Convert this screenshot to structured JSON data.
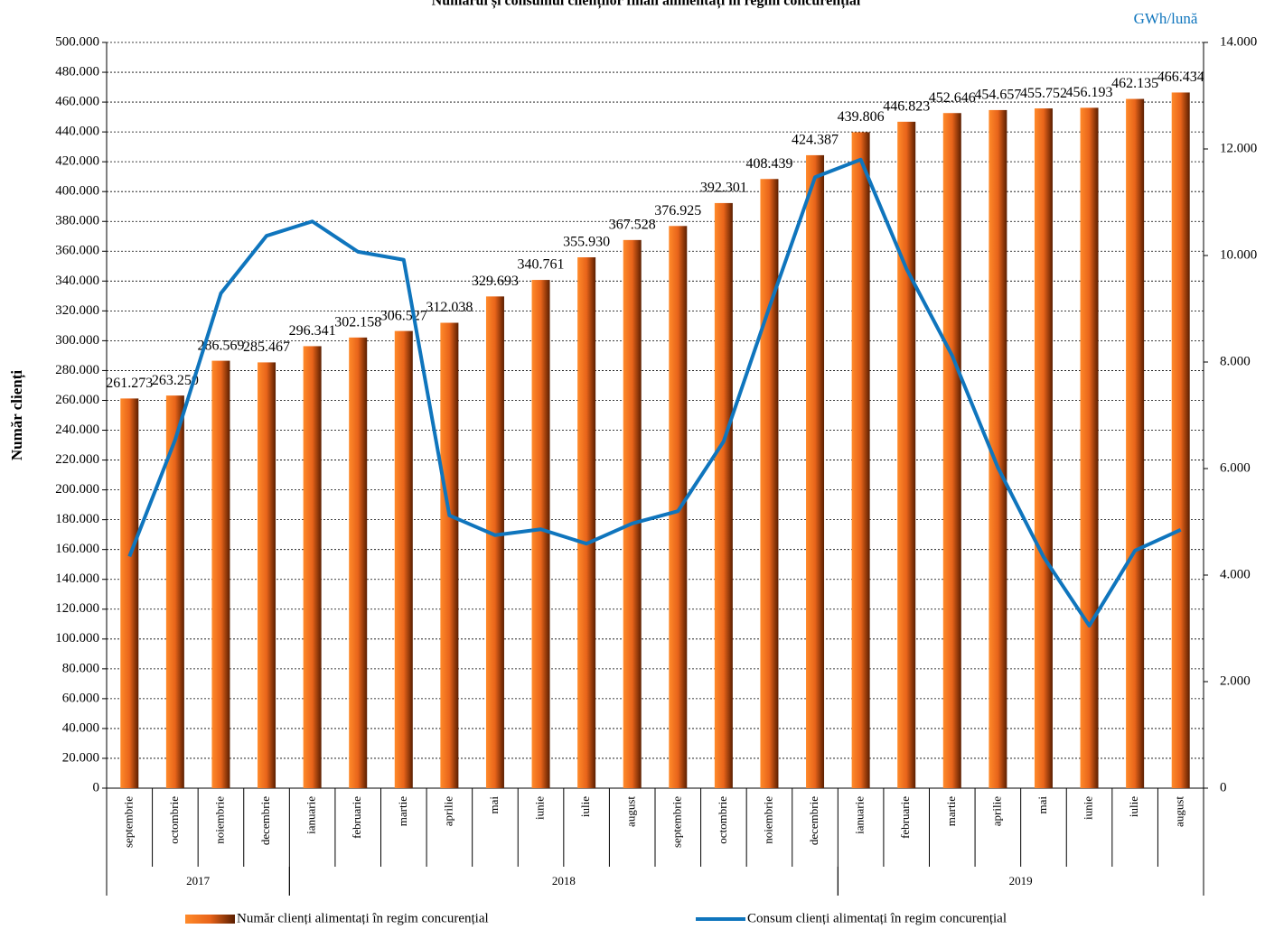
{
  "chart_data": {
    "type": "bar_line",
    "title": "Numărul și consumul clienților finali alimentați în regim concurențial",
    "y_label": "Număr clienți",
    "y2_label": "GWh/lună",
    "categories": [
      "septembrie",
      "octombrie",
      "noiembrie",
      "decembrie",
      "ianuarie",
      "februarie",
      "martie",
      "aprilie",
      "mai",
      "iunie",
      "iulie",
      "august",
      "septembrie",
      "octombrie",
      "noiembrie",
      "decembrie",
      "ianuarie",
      "februarie",
      "martie",
      "aprilie",
      "mai",
      "iunie",
      "iulie",
      "august"
    ],
    "groups": [
      {
        "name": "2017",
        "count": 4
      },
      {
        "name": "2018",
        "count": 12
      },
      {
        "name": "2019",
        "count": 8
      }
    ],
    "series": [
      {
        "name": "Număr clienți alimentați în regim concurențial",
        "type": "bar",
        "color": "#e8641a",
        "values": [
          261273,
          263250,
          286569,
          285467,
          296341,
          302158,
          306527,
          312038,
          329693,
          340761,
          355930,
          367528,
          376925,
          392301,
          408439,
          424387,
          439806,
          446823,
          452646,
          454657,
          455752,
          456193,
          462135,
          466434
        ],
        "value_labels": [
          "261.273",
          "263.250",
          "286.569",
          "285.467",
          "296.341",
          "302.158",
          "306.527",
          "312.038",
          "329.693",
          "340.761",
          "355.930",
          "367.528",
          "376.925",
          "392.301",
          "408.439",
          "424.387",
          "439.806",
          "446.823",
          "452.646",
          "454.657",
          "455.752",
          "456.193",
          "462.135",
          "466.434"
        ]
      },
      {
        "name": "Consum clienți alimentați în regim concurențial",
        "type": "line",
        "axis": "y2",
        "color": "#0f75bd",
        "values": [
          4350,
          6540,
          9290,
          10370,
          10640,
          10070,
          9920,
          5120,
          4750,
          4860,
          4590,
          4970,
          5200,
          6510,
          9030,
          11470,
          11800,
          9750,
          8120,
          6020,
          4340,
          3050,
          4460,
          4850
        ]
      }
    ],
    "ylim": [
      0,
      500000
    ],
    "yticks": [
      0,
      {
        "value": 20000,
        "label": "20.000"
      },
      {
        "value": 40000,
        "label": "40.000"
      },
      {
        "value": 60000,
        "label": "60.000"
      },
      {
        "value": 80000,
        "label": "80.000"
      },
      {
        "value": 100000,
        "label": "100.000"
      },
      {
        "value": 120000,
        "label": "120.000"
      },
      {
        "value": 140000,
        "label": "140.000"
      },
      {
        "value": 160000,
        "label": "160.000"
      },
      {
        "value": 180000,
        "label": "180.000"
      },
      {
        "value": 200000,
        "label": "200.000"
      },
      {
        "value": 220000,
        "label": "220.000"
      },
      {
        "value": 240000,
        "label": "240.000"
      },
      {
        "value": 260000,
        "label": "260.000"
      },
      {
        "value": 280000,
        "label": "280.000"
      },
      {
        "value": 300000,
        "label": "300.000"
      },
      {
        "value": 320000,
        "label": "320.000"
      },
      {
        "value": 340000,
        "label": "340.000"
      },
      {
        "value": 360000,
        "label": "360.000"
      },
      {
        "value": 380000,
        "label": "380.000"
      },
      {
        "value": 400000,
        "label": "400.000"
      },
      {
        "value": 420000,
        "label": "420.000"
      },
      {
        "value": 440000,
        "label": "440.000"
      },
      {
        "value": 460000,
        "label": "460.000"
      },
      {
        "value": 480000,
        "label": "480.000"
      },
      {
        "value": 500000,
        "label": "500.000"
      }
    ],
    "y2lim": [
      0,
      14000
    ],
    "y2ticks": [
      0,
      {
        "value": 2000,
        "label": "2.000"
      },
      {
        "value": 4000,
        "label": "4.000"
      },
      {
        "value": 6000,
        "label": "6.000"
      },
      {
        "value": 8000,
        "label": "8.000"
      },
      {
        "value": 10000,
        "label": "10.000"
      },
      {
        "value": 12000,
        "label": "12.000"
      },
      {
        "value": 14000,
        "label": "14.000"
      }
    ],
    "grid": true
  }
}
